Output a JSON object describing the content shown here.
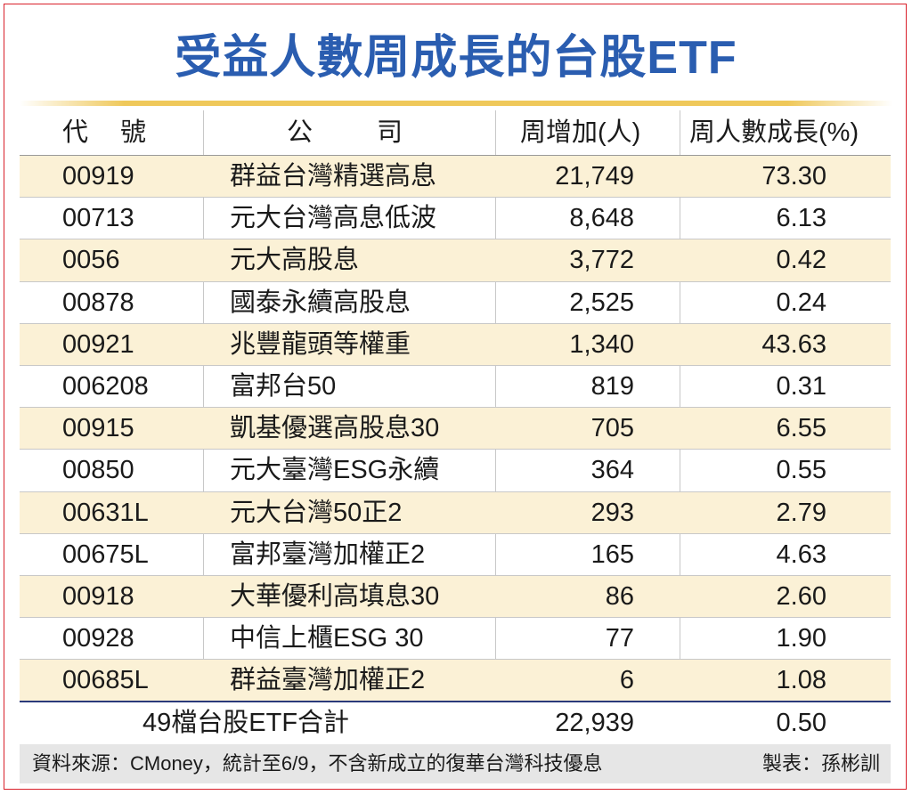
{
  "title": "受益人數周成長的台股ETF",
  "headers": {
    "code": "代號",
    "name": "公司",
    "weekly_increase": "周增加(人)",
    "growth_pct": "周人數成長(%)"
  },
  "rows": [
    {
      "code": "00919",
      "name": "群益台灣精選高息",
      "inc": "21,749",
      "grow": "73.30"
    },
    {
      "code": "00713",
      "name": "元大台灣高息低波",
      "inc": "8,648",
      "grow": "6.13"
    },
    {
      "code": "0056",
      "name": "元大高股息",
      "inc": "3,772",
      "grow": "0.42"
    },
    {
      "code": "00878",
      "name": "國泰永續高股息",
      "inc": "2,525",
      "grow": "0.24"
    },
    {
      "code": "00921",
      "name": "兆豐龍頭等權重",
      "inc": "1,340",
      "grow": "43.63"
    },
    {
      "code": "006208",
      "name": "富邦台50",
      "inc": "819",
      "grow": "0.31"
    },
    {
      "code": "00915",
      "name": "凱基優選高股息30",
      "inc": "705",
      "grow": "6.55"
    },
    {
      "code": "00850",
      "name": "元大臺灣ESG永續",
      "inc": "364",
      "grow": "0.55"
    },
    {
      "code": "00631L",
      "name": "元大台灣50正2",
      "inc": "293",
      "grow": "2.79"
    },
    {
      "code": "00675L",
      "name": "富邦臺灣加權正2",
      "inc": "165",
      "grow": "4.63"
    },
    {
      "code": "00918",
      "name": "大華優利高填息30",
      "inc": "86",
      "grow": "2.60"
    },
    {
      "code": "00928",
      "name": "中信上櫃ESG 30",
      "inc": "77",
      "grow": "1.90"
    },
    {
      "code": "00685L",
      "name": "群益臺灣加權正2",
      "inc": "6",
      "grow": "1.08"
    }
  ],
  "total": {
    "label": "49檔台股ETF合計",
    "inc": "22,939",
    "grow": "0.50"
  },
  "footer": {
    "source": "資料來源：CMoney，統計至6/9，不含新成立的復華台灣科技優息",
    "maker": "製表：孫彬訓"
  },
  "colors": {
    "title": "#2a5db0",
    "row_highlight": "#fbf1d6",
    "border": "#d9202a",
    "gold": "#efc85a"
  }
}
